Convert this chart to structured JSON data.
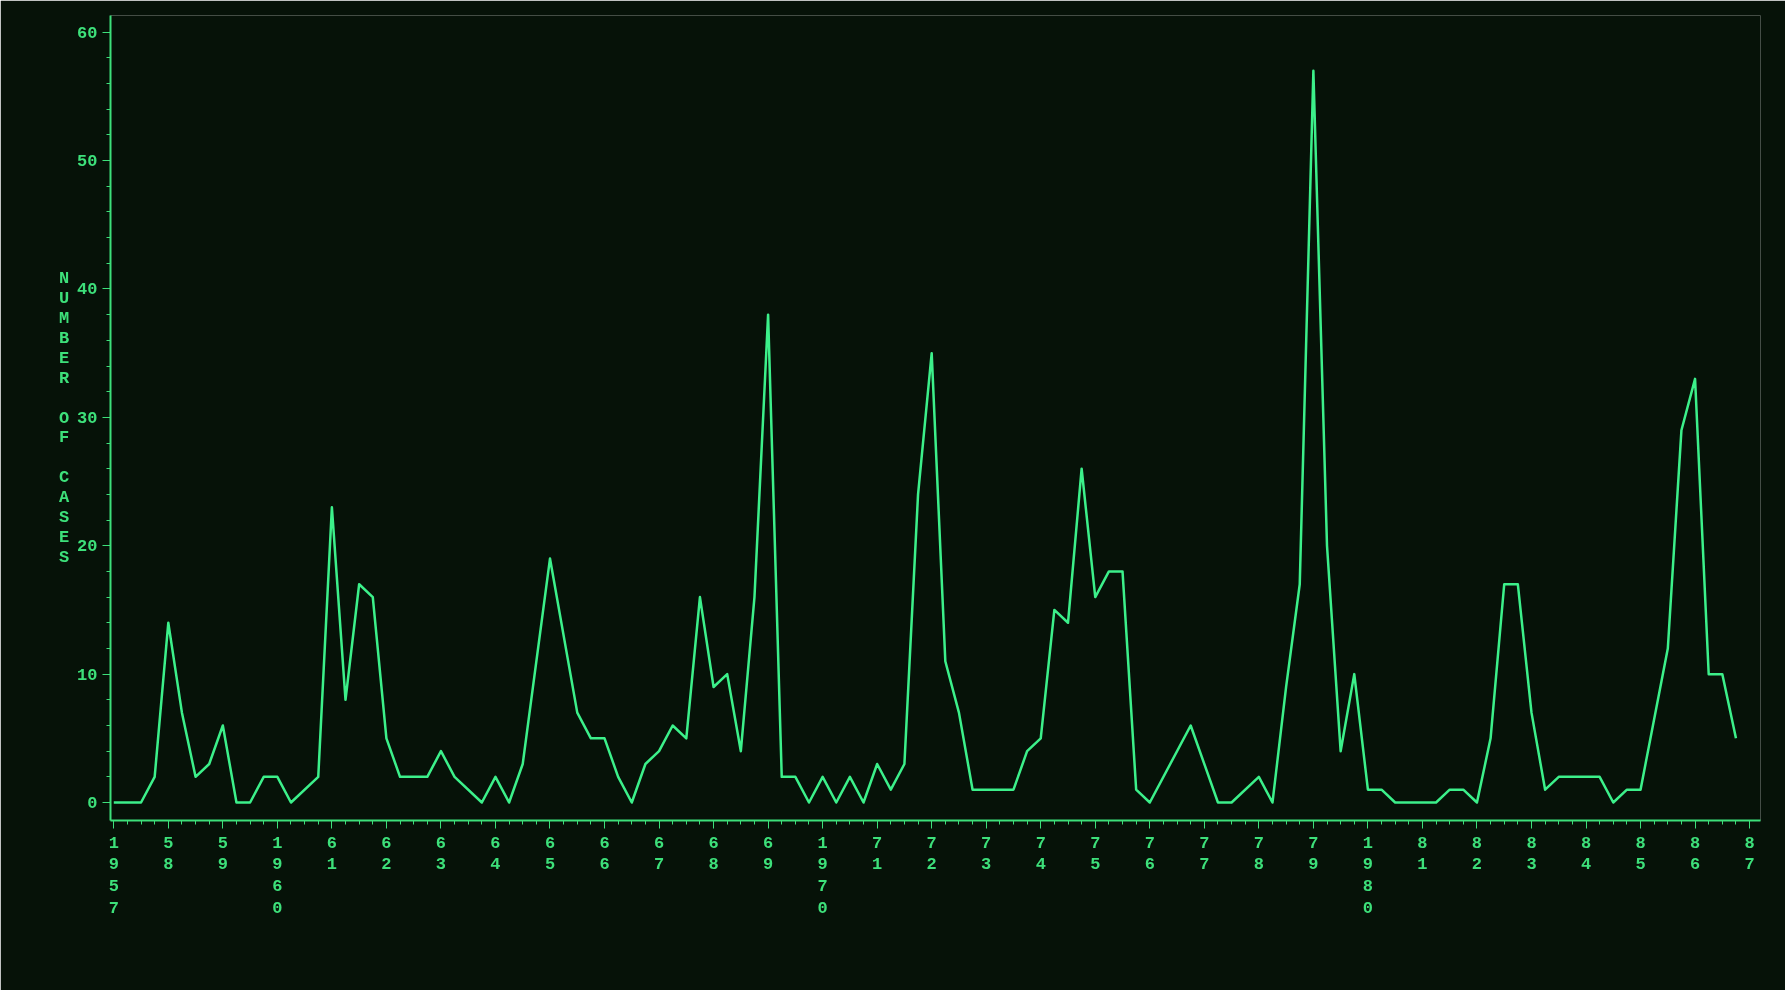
{
  "chart_data": {
    "type": "line",
    "ylabel": "NUMBER OF CASES",
    "color": "#3cf08a",
    "grid": false,
    "marker": "none",
    "line_style": "solid",
    "x": [
      1957.0,
      1957.5,
      1957.75,
      1958.0,
      1958.25,
      1958.5,
      1958.75,
      1959.0,
      1959.25,
      1959.5,
      1959.75,
      1960.0,
      1960.25,
      1960.75,
      1961.0,
      1961.25,
      1961.5,
      1961.75,
      1962.0,
      1962.25,
      1962.75,
      1963.0,
      1963.25,
      1963.75,
      1964.0,
      1964.25,
      1964.5,
      1965.0,
      1965.5,
      1965.75,
      1966.0,
      1966.25,
      1966.5,
      1966.75,
      1967.0,
      1967.25,
      1967.5,
      1967.75,
      1968.0,
      1968.25,
      1968.5,
      1968.75,
      1969.0,
      1969.25,
      1969.5,
      1969.75,
      1970.0,
      1970.25,
      1970.5,
      1970.75,
      1971.0,
      1971.25,
      1971.5,
      1971.75,
      1972.0,
      1972.25,
      1972.5,
      1972.75,
      1973.5,
      1973.75,
      1974.0,
      1974.25,
      1974.5,
      1974.75,
      1975.0,
      1975.25,
      1975.5,
      1975.75,
      1976.0,
      1976.75,
      1977.25,
      1977.5,
      1978.0,
      1978.25,
      1978.5,
      1978.75,
      1979.0,
      1979.25,
      1979.5,
      1979.75,
      1980.0,
      1980.25,
      1980.5,
      1981.25,
      1981.5,
      1981.75,
      1982.0,
      1982.25,
      1982.5,
      1982.75,
      1983.0,
      1983.25,
      1983.5,
      1984.25,
      1984.5,
      1984.75,
      1985.0,
      1985.5,
      1985.75,
      1986.0,
      1986.25,
      1986.5,
      1986.75
    ],
    "values": [
      0,
      0,
      2,
      14,
      7,
      2,
      3,
      6,
      0,
      0,
      2,
      2,
      0,
      2,
      23,
      8,
      17,
      16,
      5,
      2,
      2,
      4,
      2,
      0,
      2,
      0,
      3,
      19,
      7,
      5,
      5,
      2,
      0,
      3,
      4,
      6,
      5,
      16,
      9,
      10,
      4,
      16,
      38,
      2,
      2,
      0,
      2,
      0,
      2,
      0,
      3,
      1,
      3,
      24,
      35,
      11,
      7,
      1,
      1,
      4,
      5,
      15,
      14,
      26,
      16,
      18,
      18,
      1,
      0,
      6,
      0,
      0,
      2,
      0,
      9,
      17,
      57,
      20,
      4,
      10,
      1,
      1,
      0,
      0,
      1,
      1,
      0,
      5,
      17,
      17,
      7,
      1,
      2,
      2,
      0,
      1,
      1,
      12,
      29,
      33,
      10,
      10,
      5
    ],
    "xlim": [
      1956.94,
      1987.2
    ],
    "ylim": [
      -1.4,
      61.3
    ],
    "yticks": [
      0,
      10,
      20,
      30,
      40,
      50,
      60
    ],
    "xticks": [
      {
        "value": 1957,
        "label": "1957"
      },
      {
        "value": 1958,
        "label": "58"
      },
      {
        "value": 1959,
        "label": "59"
      },
      {
        "value": 1960,
        "label": "1960"
      },
      {
        "value": 1961,
        "label": "61"
      },
      {
        "value": 1962,
        "label": "62"
      },
      {
        "value": 1963,
        "label": "63"
      },
      {
        "value": 1964,
        "label": "64"
      },
      {
        "value": 1965,
        "label": "65"
      },
      {
        "value": 1966,
        "label": "66"
      },
      {
        "value": 1967,
        "label": "67"
      },
      {
        "value": 1968,
        "label": "68"
      },
      {
        "value": 1969,
        "label": "69"
      },
      {
        "value": 1970,
        "label": "1970"
      },
      {
        "value": 1971,
        "label": "71"
      },
      {
        "value": 1972,
        "label": "72"
      },
      {
        "value": 1973,
        "label": "73"
      },
      {
        "value": 1974,
        "label": "74"
      },
      {
        "value": 1975,
        "label": "75"
      },
      {
        "value": 1976,
        "label": "76"
      },
      {
        "value": 1977,
        "label": "77"
      },
      {
        "value": 1978,
        "label": "78"
      },
      {
        "value": 1979,
        "label": "79"
      },
      {
        "value": 1980,
        "label": "1980"
      },
      {
        "value": 1981,
        "label": "81"
      },
      {
        "value": 1982,
        "label": "82"
      },
      {
        "value": 1983,
        "label": "83"
      },
      {
        "value": 1984,
        "label": "84"
      },
      {
        "value": 1985,
        "label": "85"
      },
      {
        "value": 1986,
        "label": "86"
      },
      {
        "value": 1987,
        "label": "87"
      }
    ]
  }
}
